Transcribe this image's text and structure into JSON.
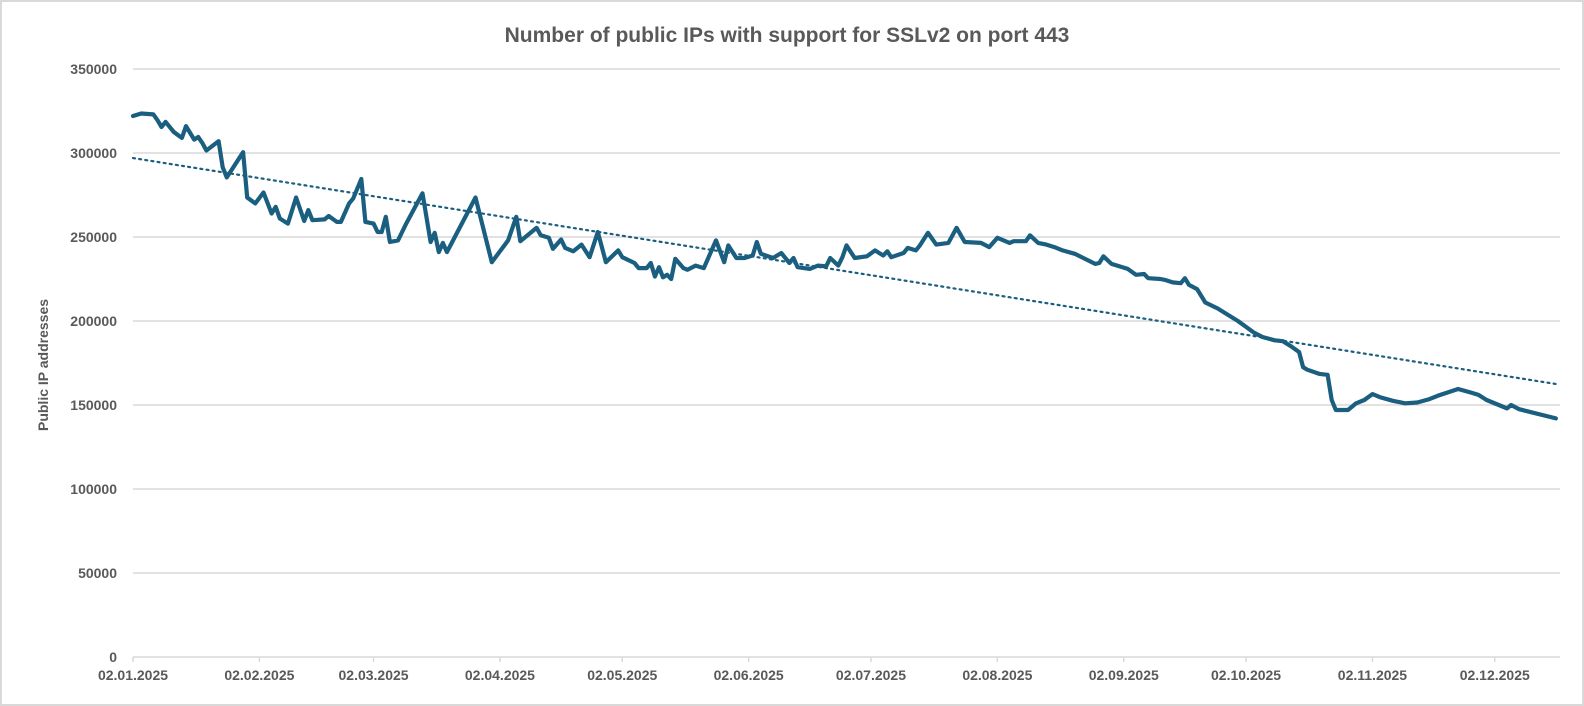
{
  "chart_data": {
    "type": "line",
    "title": "Number of public IPs with support for SSLv2 on port 443",
    "xlabel": "",
    "ylabel": "Public IP addresses",
    "ylim": [
      0,
      350000
    ],
    "xlim": [
      "2025-01-02",
      "2025-12-18"
    ],
    "y_ticks": [
      "0",
      "50000",
      "100000",
      "150000",
      "200000",
      "250000",
      "300000",
      "350000"
    ],
    "x_ticks": [
      {
        "date": "2025-01-02",
        "label": "02.01.2025"
      },
      {
        "date": "2025-02-02",
        "label": "02.02.2025"
      },
      {
        "date": "2025-03-02",
        "label": "02.03.2025"
      },
      {
        "date": "2025-04-02",
        "label": "02.04.2025"
      },
      {
        "date": "2025-05-02",
        "label": "02.05.2025"
      },
      {
        "date": "2025-06-02",
        "label": "02.06.2025"
      },
      {
        "date": "2025-07-02",
        "label": "02.07.2025"
      },
      {
        "date": "2025-08-02",
        "label": "02.08.2025"
      },
      {
        "date": "2025-09-02",
        "label": "02.09.2025"
      },
      {
        "date": "2025-10-02",
        "label": "02.10.2025"
      },
      {
        "date": "2025-11-02",
        "label": "02.11.2025"
      },
      {
        "date": "2025-12-02",
        "label": "02.12.2025"
      }
    ],
    "grid": "horizontal",
    "legend": "none",
    "colors": {
      "series": "#1b5f80",
      "trendline": "#1b5f80",
      "grid": "#d9d9d9",
      "text": "#595959"
    },
    "series": [
      {
        "points": [
          [
            "2025-01-02",
            322000
          ],
          [
            "2025-01-04",
            323500
          ],
          [
            "2025-01-07",
            323000
          ],
          [
            "2025-01-08",
            319500
          ],
          [
            "2025-01-09",
            315500
          ],
          [
            "2025-01-10",
            318500
          ],
          [
            "2025-01-12",
            312500
          ],
          [
            "2025-01-14",
            309000
          ],
          [
            "2025-01-15",
            316000
          ],
          [
            "2025-01-17",
            308000
          ],
          [
            "2025-01-18",
            309500
          ],
          [
            "2025-01-19",
            306000
          ],
          [
            "2025-01-20",
            301500
          ],
          [
            "2025-01-23",
            307000
          ],
          [
            "2025-01-24",
            291500
          ],
          [
            "2025-01-25",
            285500
          ],
          [
            "2025-01-29",
            300500
          ],
          [
            "2025-01-30",
            273500
          ],
          [
            "2025-02-01",
            270000
          ],
          [
            "2025-02-03",
            276500
          ],
          [
            "2025-02-05",
            264000
          ],
          [
            "2025-02-06",
            268000
          ],
          [
            "2025-02-07",
            261000
          ],
          [
            "2025-02-09",
            258000
          ],
          [
            "2025-02-11",
            273500
          ],
          [
            "2025-02-13",
            259500
          ],
          [
            "2025-02-14",
            266000
          ],
          [
            "2025-02-15",
            260000
          ],
          [
            "2025-02-18",
            260500
          ],
          [
            "2025-02-19",
            262500
          ],
          [
            "2025-02-21",
            259000
          ],
          [
            "2025-02-22",
            259000
          ],
          [
            "2025-02-24",
            270000
          ],
          [
            "2025-02-25",
            273000
          ],
          [
            "2025-02-27",
            284500
          ],
          [
            "2025-02-28",
            259000
          ],
          [
            "2025-03-02",
            258000
          ],
          [
            "2025-03-03",
            253000
          ],
          [
            "2025-03-04",
            253000
          ],
          [
            "2025-03-05",
            262000
          ],
          [
            "2025-03-06",
            247000
          ],
          [
            "2025-03-08",
            248000
          ],
          [
            "2025-03-10",
            258000
          ],
          [
            "2025-03-14",
            276000
          ],
          [
            "2025-03-16",
            247000
          ],
          [
            "2025-03-17",
            252500
          ],
          [
            "2025-03-18",
            241000
          ],
          [
            "2025-03-19",
            246500
          ],
          [
            "2025-03-20",
            241000
          ],
          [
            "2025-03-27",
            273500
          ],
          [
            "2025-03-31",
            235000
          ],
          [
            "2025-04-04",
            248000
          ],
          [
            "2025-04-06",
            262000
          ],
          [
            "2025-04-07",
            247500
          ],
          [
            "2025-04-11",
            255500
          ],
          [
            "2025-04-12",
            251000
          ],
          [
            "2025-04-14",
            249500
          ],
          [
            "2025-04-15",
            243000
          ],
          [
            "2025-04-17",
            248500
          ],
          [
            "2025-04-18",
            243500
          ],
          [
            "2025-04-20",
            241500
          ],
          [
            "2025-04-22",
            245500
          ],
          [
            "2025-04-24",
            238000
          ],
          [
            "2025-04-26",
            253000
          ],
          [
            "2025-04-28",
            235000
          ],
          [
            "2025-05-01",
            242000
          ],
          [
            "2025-05-02",
            238000
          ],
          [
            "2025-05-05",
            234500
          ],
          [
            "2025-05-06",
            231500
          ],
          [
            "2025-05-08",
            231500
          ],
          [
            "2025-05-09",
            234500
          ],
          [
            "2025-05-10",
            226500
          ],
          [
            "2025-05-11",
            232000
          ],
          [
            "2025-05-12",
            226000
          ],
          [
            "2025-05-13",
            227500
          ],
          [
            "2025-05-14",
            225000
          ],
          [
            "2025-05-15",
            237000
          ],
          [
            "2025-05-17",
            231500
          ],
          [
            "2025-05-18",
            230500
          ],
          [
            "2025-05-20",
            233000
          ],
          [
            "2025-05-22",
            231500
          ],
          [
            "2025-05-25",
            248000
          ],
          [
            "2025-05-27",
            235000
          ],
          [
            "2025-05-28",
            245000
          ],
          [
            "2025-05-30",
            237500
          ],
          [
            "2025-06-01",
            237500
          ],
          [
            "2025-06-03",
            239000
          ],
          [
            "2025-06-04",
            247000
          ],
          [
            "2025-06-05",
            240000
          ],
          [
            "2025-06-08",
            237500
          ],
          [
            "2025-06-10",
            240500
          ],
          [
            "2025-06-12",
            234500
          ],
          [
            "2025-06-13",
            237500
          ],
          [
            "2025-06-14",
            232000
          ],
          [
            "2025-06-17",
            231000
          ],
          [
            "2025-06-19",
            233000
          ],
          [
            "2025-06-21",
            232500
          ],
          [
            "2025-06-22",
            237500
          ],
          [
            "2025-06-24",
            233000
          ],
          [
            "2025-06-25",
            238000
          ],
          [
            "2025-06-26",
            245000
          ],
          [
            "2025-06-28",
            237500
          ],
          [
            "2025-07-01",
            238500
          ],
          [
            "2025-07-03",
            242000
          ],
          [
            "2025-07-05",
            239000
          ],
          [
            "2025-07-06",
            241500
          ],
          [
            "2025-07-07",
            238000
          ],
          [
            "2025-07-10",
            240500
          ],
          [
            "2025-07-11",
            243500
          ],
          [
            "2025-07-13",
            242000
          ],
          [
            "2025-07-14",
            245000
          ],
          [
            "2025-07-16",
            252500
          ],
          [
            "2025-07-18",
            245500
          ],
          [
            "2025-07-21",
            246500
          ],
          [
            "2025-07-23",
            255500
          ],
          [
            "2025-07-25",
            247000
          ],
          [
            "2025-07-29",
            246500
          ],
          [
            "2025-07-31",
            244000
          ],
          [
            "2025-08-02",
            249500
          ],
          [
            "2025-08-05",
            246500
          ],
          [
            "2025-08-06",
            247500
          ],
          [
            "2025-08-09",
            247500
          ],
          [
            "2025-08-10",
            251000
          ],
          [
            "2025-08-12",
            246500
          ],
          [
            "2025-08-14",
            245500
          ],
          [
            "2025-08-16",
            244000
          ],
          [
            "2025-08-18",
            242000
          ],
          [
            "2025-08-21",
            240000
          ],
          [
            "2025-08-26",
            234000
          ],
          [
            "2025-08-27",
            234500
          ],
          [
            "2025-08-28",
            238500
          ],
          [
            "2025-08-30",
            234000
          ],
          [
            "2025-09-03",
            231000
          ],
          [
            "2025-09-05",
            227500
          ],
          [
            "2025-09-07",
            228000
          ],
          [
            "2025-09-08",
            225500
          ],
          [
            "2025-09-11",
            225000
          ],
          [
            "2025-09-12",
            224500
          ],
          [
            "2025-09-14",
            223000
          ],
          [
            "2025-09-16",
            222500
          ],
          [
            "2025-09-17",
            225500
          ],
          [
            "2025-09-18",
            221500
          ],
          [
            "2025-09-20",
            219000
          ],
          [
            "2025-09-22",
            211000
          ],
          [
            "2025-09-25",
            207500
          ],
          [
            "2025-09-30",
            200000
          ],
          [
            "2025-10-02",
            196500
          ],
          [
            "2025-10-04",
            193000
          ],
          [
            "2025-10-06",
            190500
          ],
          [
            "2025-10-09",
            188500
          ],
          [
            "2025-10-11",
            188000
          ],
          [
            "2025-10-13",
            185000
          ],
          [
            "2025-10-15",
            181500
          ],
          [
            "2025-10-16",
            172500
          ],
          [
            "2025-10-17",
            171000
          ],
          [
            "2025-10-20",
            168500
          ],
          [
            "2025-10-22",
            168000
          ],
          [
            "2025-10-23",
            153000
          ],
          [
            "2025-10-24",
            147000
          ],
          [
            "2025-10-27",
            147000
          ],
          [
            "2025-10-29",
            151000
          ],
          [
            "2025-10-31",
            153000
          ],
          [
            "2025-11-02",
            156500
          ],
          [
            "2025-11-04",
            154500
          ],
          [
            "2025-11-07",
            152500
          ],
          [
            "2025-11-10",
            151000
          ],
          [
            "2025-11-13",
            151500
          ],
          [
            "2025-11-16",
            153500
          ],
          [
            "2025-11-18",
            155500
          ],
          [
            "2025-11-23",
            159500
          ],
          [
            "2025-11-26",
            157500
          ],
          [
            "2025-11-28",
            156000
          ],
          [
            "2025-11-30",
            153000
          ],
          [
            "2025-12-03",
            150000
          ],
          [
            "2025-12-05",
            148000
          ],
          [
            "2025-12-06",
            150000
          ],
          [
            "2025-12-08",
            147500
          ],
          [
            "2025-12-17",
            142000
          ]
        ]
      }
    ],
    "trendline": {
      "type": "linear",
      "style": "dotted",
      "points": [
        [
          "2025-01-02",
          297000
        ],
        [
          "2025-12-17",
          162500
        ]
      ]
    }
  }
}
